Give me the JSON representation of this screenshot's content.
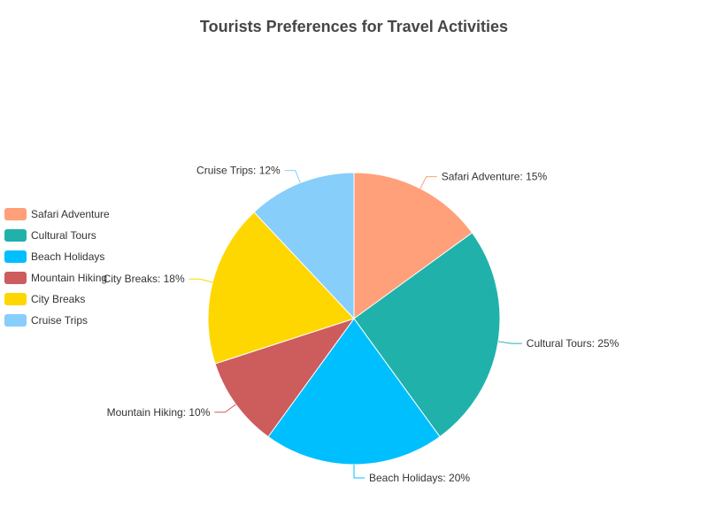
{
  "chart_data": {
    "type": "pie",
    "title": "Tourists Preferences for Travel Activities",
    "legend_position": "left",
    "slices": [
      {
        "name": "Safari Adventure",
        "value": 15,
        "color": "#FFA07A"
      },
      {
        "name": "Cultural Tours",
        "value": 25,
        "color": "#20B2AA"
      },
      {
        "name": "Beach Holidays",
        "value": 20,
        "color": "#00BFFF"
      },
      {
        "name": "Mountain Hiking",
        "value": 10,
        "color": "#CD5C5C"
      },
      {
        "name": "City Breaks",
        "value": 18,
        "color": "#FFD700"
      },
      {
        "name": "Cruise Trips",
        "value": 12,
        "color": "#87CEFA"
      }
    ]
  }
}
